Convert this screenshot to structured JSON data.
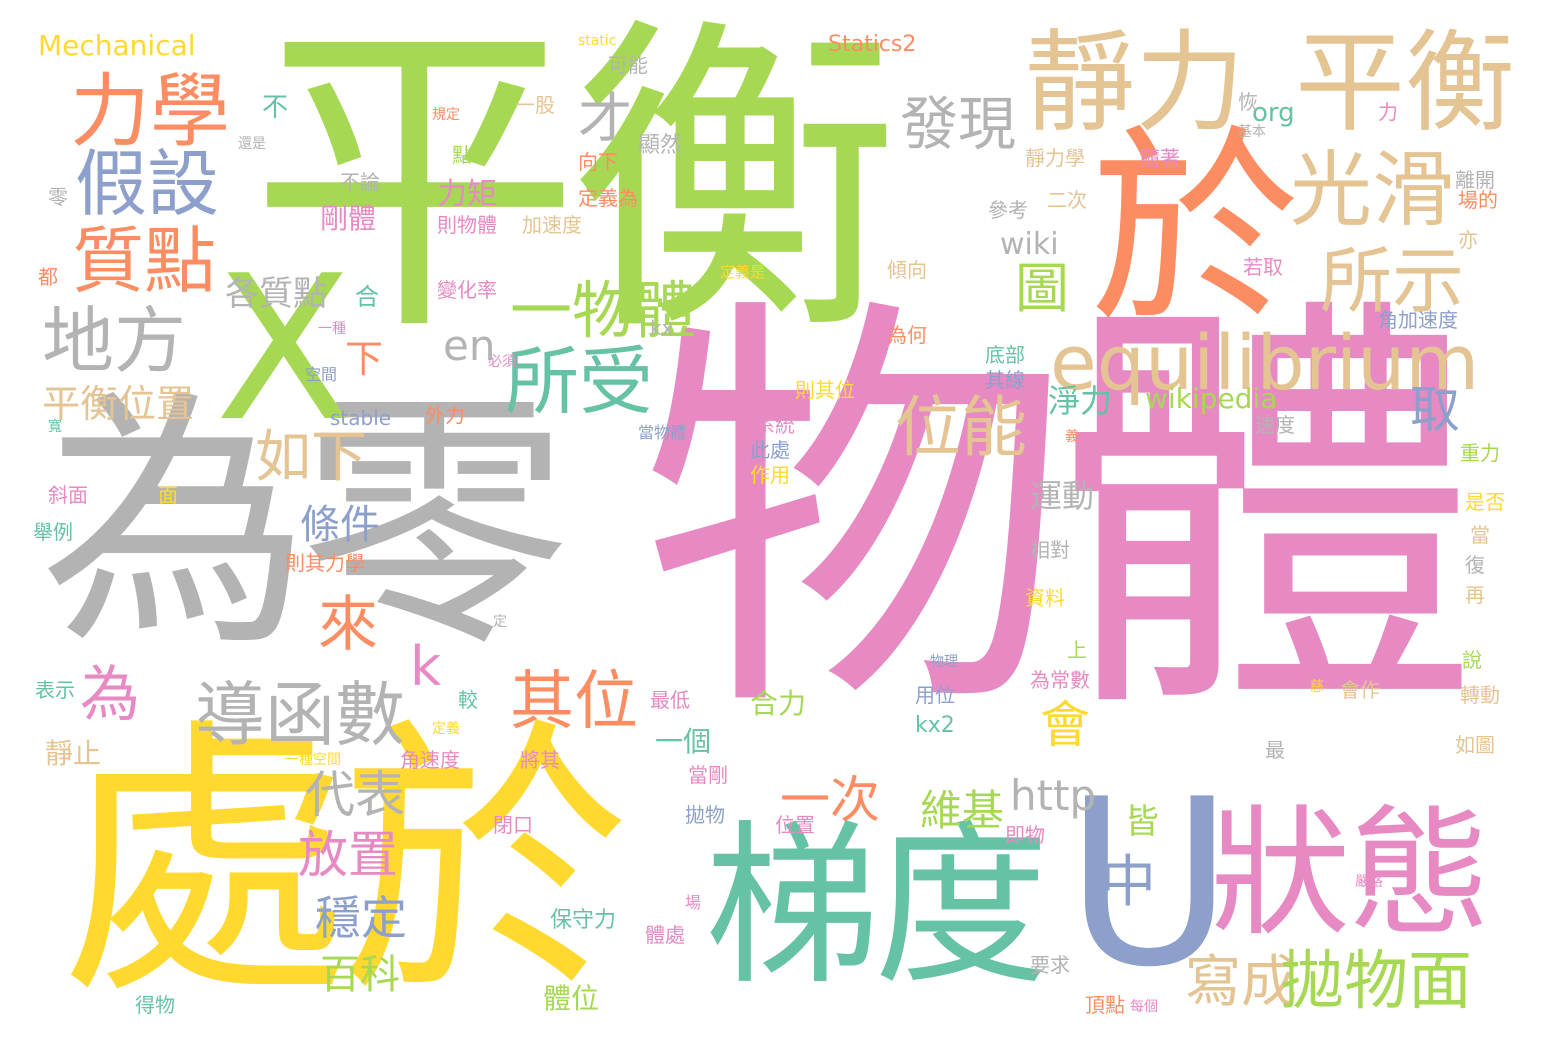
{
  "palette": {
    "green": "#a6d854",
    "pink": "#e78ac3",
    "gray": "#b3b3b3",
    "yellow": "#ffd92f",
    "teal": "#66c2a5",
    "orange": "#fc8d62",
    "tan": "#e5c494",
    "blue": "#8da0cb"
  },
  "words": [
    "平衡",
    "物體",
    "為零",
    "處於",
    "梯度",
    "U",
    "狀態",
    "X",
    "靜力",
    "平衡",
    "於",
    "力學",
    "假設",
    "質點",
    "地方",
    "光滑",
    "equilibrium",
    "所示",
    "一物體",
    "所受",
    "發現",
    "位能",
    "如下",
    "來",
    "為",
    "導函數",
    "其位",
    "代表",
    "放置",
    "穩定",
    "條件",
    "百科",
    "中",
    "會",
    "寫成",
    "拋物面",
    "圖",
    "取",
    "才",
    "各質點",
    "平衡位置",
    "下",
    "en",
    "k",
    "一次",
    "維基",
    "http",
    "運動",
    "淨力",
    "wikipedia",
    "wiki",
    "皆",
    "Mechanical",
    "Statics2",
    "static",
    "可能",
    "一股",
    "org",
    "不",
    "規定",
    "還是",
    "零",
    "不論",
    "點",
    "顯然",
    "向下",
    "定義為",
    "力矩",
    "剛體",
    "則物體",
    "加速度",
    "都",
    "合",
    "變化率",
    "定義是",
    "傾向",
    "參考",
    "二次",
    "若取",
    "亦",
    "kx",
    "角加速度",
    "為何",
    "底部",
    "其線",
    "stable",
    "外力",
    "空間",
    "必須",
    "一種",
    "寬",
    "斜面",
    "面",
    "舉例",
    "則其力學",
    "表示",
    "定",
    "較",
    "上",
    "一個",
    "靜止",
    "角速度",
    "將其",
    "當剛",
    "一種空間",
    "定義",
    "kx2",
    "合力",
    "最低",
    "物理",
    "用位",
    "為常數",
    "系統",
    "此處",
    "作用",
    "當物體",
    "則其位",
    "速度",
    "重力",
    "是否",
    "當",
    "復",
    "再",
    "說",
    "轉動",
    "如圖",
    "最",
    "會作",
    "慈",
    "閉口",
    "拋物",
    "位置",
    "即物",
    "嚴格",
    "保守力",
    "體處",
    "場",
    "要求",
    "頂點",
    "每個",
    "得物",
    "體位",
    "恢",
    "力",
    "靜力學",
    "隨著",
    "離開",
    "基本",
    "場的",
    "相對",
    "資料",
    "義",
    "力學"
  ]
}
